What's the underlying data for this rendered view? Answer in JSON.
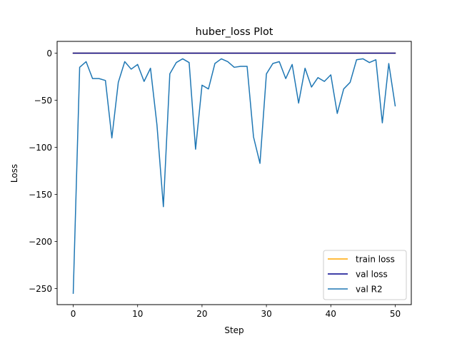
{
  "chart_data": {
    "type": "line",
    "title": "huber_loss Plot",
    "xlabel": "Step",
    "ylabel": "Loss",
    "xlim": [
      -2.5,
      52.5
    ],
    "ylim": [
      -267,
      12.5
    ],
    "xticks": [
      0,
      10,
      20,
      30,
      40,
      50
    ],
    "xtick_labels": [
      "0",
      "10",
      "20",
      "30",
      "40",
      "50"
    ],
    "yticks": [
      0,
      -50,
      -100,
      -150,
      -200,
      -250
    ],
    "ytick_labels": [
      "0",
      "−50",
      "−100",
      "−150",
      "−200",
      "−250"
    ],
    "grid": false,
    "legend_position": "lower right",
    "x": [
      0,
      1,
      2,
      3,
      4,
      5,
      6,
      7,
      8,
      9,
      10,
      11,
      12,
      13,
      14,
      15,
      16,
      17,
      18,
      19,
      20,
      21,
      22,
      23,
      24,
      25,
      26,
      27,
      28,
      29,
      30,
      31,
      32,
      33,
      34,
      35,
      36,
      37,
      38,
      39,
      40,
      41,
      42,
      43,
      44,
      45,
      46,
      47,
      48,
      49,
      50
    ],
    "series": [
      {
        "name": "train loss",
        "color": "#ffa500",
        "values": [
          0,
          0,
          0,
          0,
          0,
          0,
          0,
          0,
          0,
          0,
          0,
          0,
          0,
          0,
          0,
          0,
          0,
          0,
          0,
          0,
          0,
          0,
          0,
          0,
          0,
          0,
          0,
          0,
          0,
          0,
          0,
          0,
          0,
          0,
          0,
          0,
          0,
          0,
          0,
          0,
          0,
          0,
          0,
          0,
          0,
          0,
          0,
          0,
          0,
          0,
          0
        ]
      },
      {
        "name": "val loss",
        "color": "#00008b",
        "values": [
          0,
          0,
          0,
          0,
          0,
          0,
          0,
          0,
          0,
          0,
          0,
          0,
          0,
          0,
          0,
          0,
          0,
          0,
          0,
          0,
          0,
          0,
          0,
          0,
          0,
          0,
          0,
          0,
          0,
          0,
          0,
          0,
          0,
          0,
          0,
          0,
          0,
          0,
          0,
          0,
          0,
          0,
          0,
          0,
          0,
          0,
          0,
          0,
          0,
          0,
          0
        ]
      },
      {
        "name": "val R2",
        "color": "#1f77b4",
        "values": [
          -255,
          -15,
          -9,
          -27,
          -27,
          -29,
          -90,
          -31,
          -9,
          -17,
          -12,
          -30,
          -16,
          -76,
          -163,
          -22,
          -10,
          -6,
          -10,
          -102,
          -34,
          -38,
          -11,
          -6,
          -9,
          -15,
          -14,
          -14,
          -89,
          -117,
          -22,
          -11,
          -9,
          -27,
          -12,
          -53,
          -16,
          -36,
          -26,
          -30,
          -23,
          -64,
          -38,
          -31,
          -7,
          -6,
          -10,
          -7,
          -74,
          -11,
          -56
        ]
      }
    ]
  }
}
